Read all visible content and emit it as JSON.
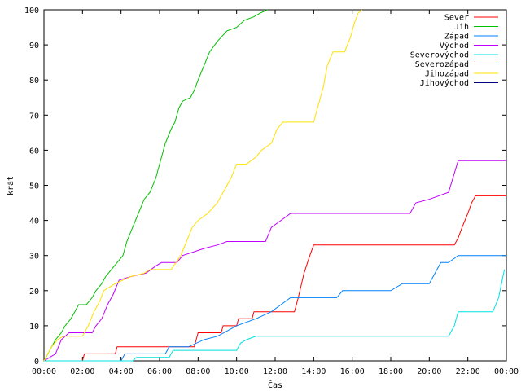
{
  "chart_data": {
    "type": "line",
    "title": "",
    "xlabel": "Čas",
    "ylabel": "krát",
    "xlim": [
      0,
      24
    ],
    "ylim": [
      0,
      100
    ],
    "x_ticks": [
      0,
      2,
      4,
      6,
      8,
      10,
      12,
      14,
      16,
      18,
      20,
      22,
      24
    ],
    "x_tick_labels": [
      "00:00",
      "02:00",
      "04:00",
      "06:00",
      "08:00",
      "10:00",
      "12:00",
      "14:00",
      "16:00",
      "18:00",
      "20:00",
      "22:00",
      "00:00"
    ],
    "y_ticks": [
      0,
      10,
      20,
      30,
      40,
      50,
      60,
      70,
      80,
      90,
      100
    ],
    "y_tick_labels": [
      "0",
      "10",
      "20",
      "30",
      "40",
      "50",
      "60",
      "70",
      "80",
      "90",
      "100"
    ],
    "grid": false,
    "legend_position": "top-right",
    "series": [
      {
        "name": "Sever",
        "color": "#ff0000",
        "points": [
          [
            0,
            0
          ],
          [
            2,
            0
          ],
          [
            2.1,
            2
          ],
          [
            3.7,
            2
          ],
          [
            3.8,
            4
          ],
          [
            7.8,
            4
          ],
          [
            7.9,
            6
          ],
          [
            8.0,
            8
          ],
          [
            9.2,
            8
          ],
          [
            9.3,
            10
          ],
          [
            10.0,
            10
          ],
          [
            10.1,
            12
          ],
          [
            10.8,
            12
          ],
          [
            10.9,
            14
          ],
          [
            12.0,
            14
          ],
          [
            12.1,
            14
          ],
          [
            13.0,
            14
          ],
          [
            13.2,
            18
          ],
          [
            13.5,
            25
          ],
          [
            13.8,
            30
          ],
          [
            14.0,
            33
          ],
          [
            16.0,
            33
          ],
          [
            18.0,
            33
          ],
          [
            21.3,
            33
          ],
          [
            21.5,
            35
          ],
          [
            21.7,
            38
          ],
          [
            22.0,
            42
          ],
          [
            22.2,
            45
          ],
          [
            22.4,
            47
          ],
          [
            24,
            47
          ]
        ]
      },
      {
        "name": "Jih",
        "color": "#00c000",
        "points": [
          [
            0,
            0
          ],
          [
            0.3,
            3
          ],
          [
            0.6,
            6
          ],
          [
            0.9,
            8
          ],
          [
            1.1,
            10
          ],
          [
            1.4,
            12
          ],
          [
            1.6,
            14
          ],
          [
            1.8,
            16
          ],
          [
            2.2,
            16
          ],
          [
            2.5,
            18
          ],
          [
            2.7,
            20
          ],
          [
            3.0,
            22
          ],
          [
            3.2,
            24
          ],
          [
            3.5,
            26
          ],
          [
            3.8,
            28
          ],
          [
            4.1,
            30
          ],
          [
            4.3,
            34
          ],
          [
            4.6,
            38
          ],
          [
            4.9,
            42
          ],
          [
            5.2,
            46
          ],
          [
            5.5,
            48
          ],
          [
            5.8,
            52
          ],
          [
            6.0,
            56
          ],
          [
            6.3,
            62
          ],
          [
            6.6,
            66
          ],
          [
            6.8,
            68
          ],
          [
            7.0,
            72
          ],
          [
            7.2,
            74
          ],
          [
            7.6,
            75
          ],
          [
            7.8,
            77
          ],
          [
            8.0,
            80
          ],
          [
            8.3,
            84
          ],
          [
            8.6,
            88
          ],
          [
            9.0,
            91
          ],
          [
            9.5,
            94
          ],
          [
            10.0,
            95
          ],
          [
            10.4,
            97
          ],
          [
            10.9,
            98
          ],
          [
            11.2,
            99
          ],
          [
            11.6,
            100
          ]
        ]
      },
      {
        "name": "Západ",
        "color": "#0080ff",
        "points": [
          [
            0,
            0
          ],
          [
            4.0,
            0
          ],
          [
            4.2,
            2
          ],
          [
            6.3,
            2
          ],
          [
            6.5,
            4
          ],
          [
            7.5,
            4
          ],
          [
            8.3,
            6
          ],
          [
            9.0,
            7
          ],
          [
            10.0,
            10
          ],
          [
            11.0,
            12
          ],
          [
            11.8,
            14
          ],
          [
            12.3,
            16
          ],
          [
            12.8,
            18
          ],
          [
            14.0,
            18
          ],
          [
            15.2,
            18
          ],
          [
            15.5,
            20
          ],
          [
            18.0,
            20
          ],
          [
            18.6,
            22
          ],
          [
            20.0,
            22
          ],
          [
            20.3,
            25
          ],
          [
            20.6,
            28
          ],
          [
            21.0,
            28
          ],
          [
            21.5,
            30
          ],
          [
            24,
            30
          ]
        ]
      },
      {
        "name": "Východ",
        "color": "#c000ff",
        "points": [
          [
            0,
            0
          ],
          [
            0.6,
            2
          ],
          [
            0.9,
            6
          ],
          [
            1.3,
            8
          ],
          [
            2.5,
            8
          ],
          [
            2.7,
            10
          ],
          [
            3.0,
            12
          ],
          [
            3.3,
            16
          ],
          [
            3.6,
            19
          ],
          [
            3.9,
            23
          ],
          [
            4.5,
            24
          ],
          [
            5.3,
            25
          ],
          [
            5.8,
            27
          ],
          [
            6.1,
            28
          ],
          [
            6.9,
            28
          ],
          [
            7.2,
            30
          ],
          [
            8.3,
            32
          ],
          [
            9.0,
            33
          ],
          [
            9.5,
            34
          ],
          [
            11.5,
            34
          ],
          [
            11.8,
            38
          ],
          [
            12.3,
            40
          ],
          [
            12.8,
            42
          ],
          [
            19.0,
            42
          ],
          [
            19.3,
            45
          ],
          [
            20.0,
            46
          ],
          [
            21.0,
            48
          ],
          [
            21.5,
            57
          ],
          [
            24,
            57
          ]
        ]
      },
      {
        "name": "Severovýchod",
        "color": "#00e0e0",
        "points": [
          [
            0,
            0
          ],
          [
            4.6,
            0
          ],
          [
            4.8,
            1
          ],
          [
            6.5,
            1
          ],
          [
            6.7,
            3
          ],
          [
            10.0,
            3
          ],
          [
            10.2,
            5
          ],
          [
            10.5,
            6
          ],
          [
            11.0,
            7
          ],
          [
            21.0,
            7
          ],
          [
            21.3,
            10
          ],
          [
            21.5,
            14
          ],
          [
            23.3,
            14
          ],
          [
            23.6,
            18
          ],
          [
            23.9,
            26
          ]
        ]
      },
      {
        "name": "Severozápad",
        "color": "#c04000",
        "points": []
      },
      {
        "name": "Jihozápad",
        "color": "#ffe000",
        "points": [
          [
            0,
            0
          ],
          [
            0.2,
            2
          ],
          [
            0.4,
            4
          ],
          [
            0.7,
            6
          ],
          [
            1.0,
            7
          ],
          [
            2.0,
            7
          ],
          [
            2.3,
            10
          ],
          [
            2.6,
            14
          ],
          [
            2.9,
            17
          ],
          [
            3.1,
            20
          ],
          [
            3.7,
            22
          ],
          [
            4.5,
            24
          ],
          [
            5.2,
            25
          ],
          [
            5.5,
            26
          ],
          [
            6.6,
            26
          ],
          [
            7.1,
            30
          ],
          [
            7.4,
            34
          ],
          [
            7.7,
            38
          ],
          [
            8.0,
            40
          ],
          [
            8.5,
            42
          ],
          [
            9.0,
            45
          ],
          [
            9.3,
            48
          ],
          [
            9.7,
            52
          ],
          [
            10.0,
            56
          ],
          [
            10.5,
            56
          ],
          [
            11.0,
            58
          ],
          [
            11.3,
            60
          ],
          [
            11.8,
            62
          ],
          [
            12.1,
            66
          ],
          [
            12.4,
            68
          ],
          [
            14.0,
            68
          ],
          [
            14.1,
            70
          ],
          [
            14.3,
            74
          ],
          [
            14.5,
            78
          ],
          [
            14.7,
            84
          ],
          [
            15.0,
            88
          ],
          [
            15.6,
            88
          ],
          [
            15.9,
            92
          ],
          [
            16.1,
            96
          ],
          [
            16.3,
            99
          ],
          [
            16.5,
            100
          ]
        ]
      },
      {
        "name": "Jihovýchod",
        "color": "#000080",
        "points": []
      }
    ]
  }
}
